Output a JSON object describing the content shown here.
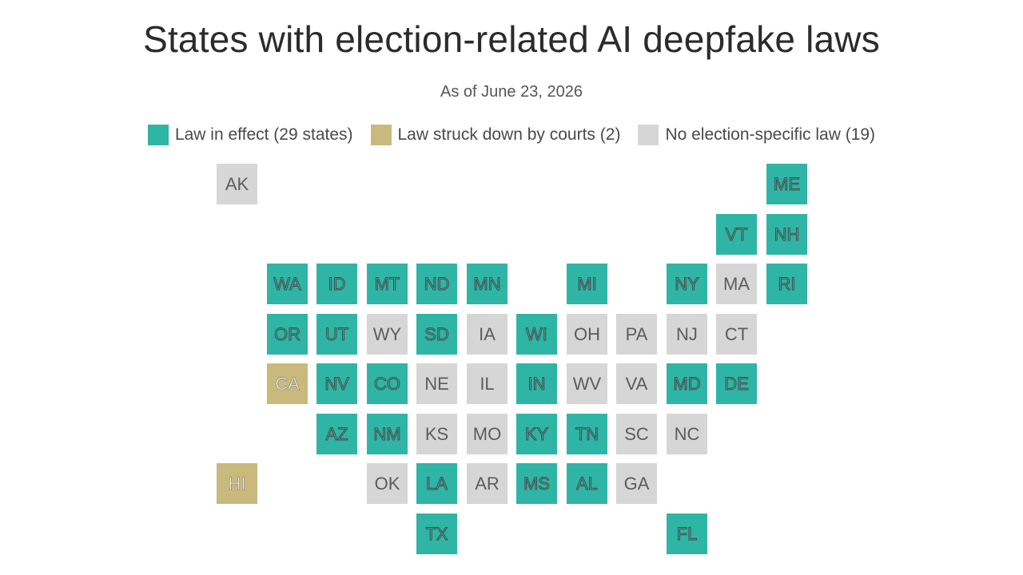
{
  "title": "States with election-related AI deepfake laws",
  "subtitle": "As of June 23, 2026",
  "colors": {
    "effect": "#2fb5a6",
    "struck": "#c9b97d",
    "none": "#d6d6d6"
  },
  "legend": {
    "effect": "Law in effect (29 states)",
    "struck": "Law struck down by courts (2)",
    "none": "No election-specific law (19)"
  },
  "states": [
    {
      "abbr": "AK",
      "status": "none"
    },
    {
      "abbr": "ME",
      "status": "effect"
    },
    {
      "abbr": "VT",
      "status": "effect"
    },
    {
      "abbr": "NH",
      "status": "effect"
    },
    {
      "abbr": "WA",
      "status": "effect"
    },
    {
      "abbr": "ID",
      "status": "effect"
    },
    {
      "abbr": "MT",
      "status": "effect"
    },
    {
      "abbr": "ND",
      "status": "effect"
    },
    {
      "abbr": "MN",
      "status": "effect"
    },
    {
      "abbr": "MI",
      "status": "effect"
    },
    {
      "abbr": "NY",
      "status": "effect"
    },
    {
      "abbr": "MA",
      "status": "none"
    },
    {
      "abbr": "RI",
      "status": "effect"
    },
    {
      "abbr": "OR",
      "status": "effect"
    },
    {
      "abbr": "UT",
      "status": "effect"
    },
    {
      "abbr": "WY",
      "status": "none"
    },
    {
      "abbr": "SD",
      "status": "effect"
    },
    {
      "abbr": "IA",
      "status": "none"
    },
    {
      "abbr": "WI",
      "status": "effect"
    },
    {
      "abbr": "OH",
      "status": "none"
    },
    {
      "abbr": "PA",
      "status": "none"
    },
    {
      "abbr": "NJ",
      "status": "none"
    },
    {
      "abbr": "CT",
      "status": "none"
    },
    {
      "abbr": "CA",
      "status": "struck"
    },
    {
      "abbr": "NV",
      "status": "effect"
    },
    {
      "abbr": "CO",
      "status": "effect"
    },
    {
      "abbr": "NE",
      "status": "none"
    },
    {
      "abbr": "IL",
      "status": "none"
    },
    {
      "abbr": "IN",
      "status": "effect"
    },
    {
      "abbr": "WV",
      "status": "none"
    },
    {
      "abbr": "VA",
      "status": "none"
    },
    {
      "abbr": "MD",
      "status": "effect"
    },
    {
      "abbr": "DE",
      "status": "effect"
    },
    {
      "abbr": "AZ",
      "status": "effect"
    },
    {
      "abbr": "NM",
      "status": "effect"
    },
    {
      "abbr": "KS",
      "status": "none"
    },
    {
      "abbr": "MO",
      "status": "none"
    },
    {
      "abbr": "KY",
      "status": "effect"
    },
    {
      "abbr": "TN",
      "status": "effect"
    },
    {
      "abbr": "SC",
      "status": "none"
    },
    {
      "abbr": "NC",
      "status": "none"
    },
    {
      "abbr": "HI",
      "status": "struck"
    },
    {
      "abbr": "OK",
      "status": "none"
    },
    {
      "abbr": "LA",
      "status": "effect"
    },
    {
      "abbr": "AR",
      "status": "none"
    },
    {
      "abbr": "MS",
      "status": "effect"
    },
    {
      "abbr": "AL",
      "status": "effect"
    },
    {
      "abbr": "GA",
      "status": "none"
    },
    {
      "abbr": "TX",
      "status": "effect"
    },
    {
      "abbr": "FL",
      "status": "effect"
    }
  ]
}
